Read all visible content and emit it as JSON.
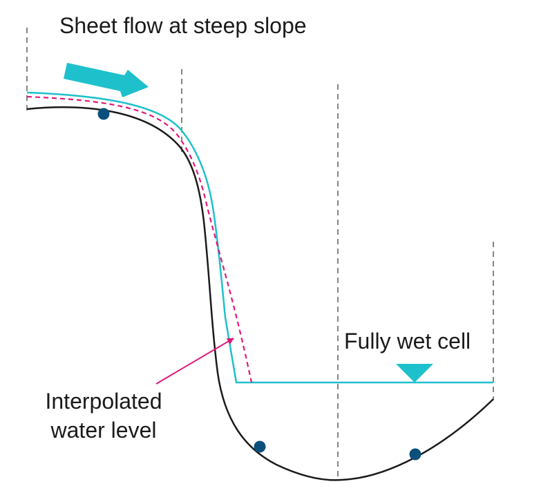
{
  "labels": {
    "title": "Sheet flow at steep slope",
    "fully_wet": "Fully wet cell",
    "interp_line1": "Interpolated",
    "interp_line2": "water level"
  },
  "colors": {
    "terrain": "#1a1a1a",
    "water_surface": "#1ec0cc",
    "interpolated": "#e0177a",
    "cell_center": "#0b4f7c",
    "cell_boundary": "#333333",
    "flow_arrow": "#1ec0cc",
    "pointer_arrow": "#e0177a"
  },
  "icons": {
    "flow_direction": "flow-arrow-icon",
    "water_level_marker": "water-level-triangle-icon"
  }
}
